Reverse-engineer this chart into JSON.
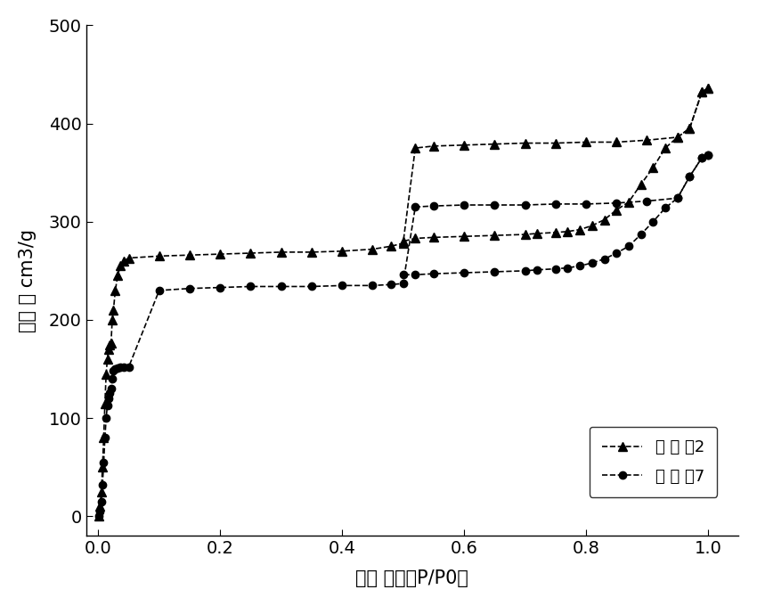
{
  "title": "",
  "xlabel": "相对 压力（P/P0）",
  "ylabel": "吸附 量 cm3/g",
  "xlim": [
    -0.02,
    1.05
  ],
  "ylim": [
    -20,
    500
  ],
  "yticks": [
    0,
    100,
    200,
    300,
    400,
    500
  ],
  "xticks": [
    0.0,
    0.2,
    0.4,
    0.6,
    0.8,
    1.0
  ],
  "legend_labels": [
    "实 施 例2",
    "实 施 例7"
  ],
  "series2_adsorption_x": [
    0.001,
    0.003,
    0.005,
    0.007,
    0.009,
    0.011,
    0.013,
    0.015,
    0.017,
    0.019,
    0.021,
    0.023,
    0.025,
    0.028,
    0.032,
    0.036,
    0.042,
    0.05,
    0.1,
    0.15,
    0.2,
    0.25,
    0.3,
    0.35,
    0.4,
    0.45,
    0.48,
    0.5,
    0.52,
    0.55,
    0.6,
    0.65,
    0.7,
    0.75,
    0.8,
    0.85,
    0.9,
    0.95,
    0.97,
    0.99,
    1.0
  ],
  "series2_adsorption_y": [
    0,
    10,
    25,
    50,
    80,
    115,
    145,
    160,
    170,
    175,
    176,
    200,
    210,
    230,
    245,
    255,
    260,
    263,
    265,
    266,
    267,
    268,
    269,
    269,
    270,
    272,
    275,
    278,
    375,
    377,
    378,
    379,
    380,
    380,
    381,
    381,
    383,
    386,
    395,
    432,
    436
  ],
  "series2_desorption_x": [
    1.0,
    0.99,
    0.97,
    0.95,
    0.93,
    0.91,
    0.89,
    0.87,
    0.85,
    0.83,
    0.81,
    0.79,
    0.77,
    0.75,
    0.72,
    0.7,
    0.65,
    0.6,
    0.55,
    0.52,
    0.5
  ],
  "series2_desorption_y": [
    436,
    432,
    395,
    386,
    375,
    355,
    338,
    320,
    312,
    302,
    296,
    292,
    290,
    289,
    288,
    287,
    286,
    285,
    284,
    283,
    280
  ],
  "series7_adsorption_x": [
    0.001,
    0.003,
    0.005,
    0.007,
    0.009,
    0.011,
    0.013,
    0.015,
    0.017,
    0.019,
    0.021,
    0.023,
    0.025,
    0.028,
    0.032,
    0.036,
    0.042,
    0.05,
    0.1,
    0.15,
    0.2,
    0.25,
    0.3,
    0.35,
    0.4,
    0.45,
    0.48,
    0.5,
    0.52,
    0.55,
    0.6,
    0.65,
    0.7,
    0.75,
    0.8,
    0.85,
    0.9,
    0.95,
    0.97,
    0.99,
    1.0
  ],
  "series7_adsorption_y": [
    0,
    5,
    15,
    32,
    55,
    80,
    100,
    113,
    120,
    126,
    130,
    140,
    148,
    150,
    151,
    152,
    152,
    152,
    230,
    232,
    233,
    234,
    234,
    234,
    235,
    235,
    236,
    237,
    315,
    316,
    317,
    317,
    317,
    318,
    318,
    319,
    321,
    324,
    346,
    365,
    368
  ],
  "series7_desorption_x": [
    1.0,
    0.99,
    0.97,
    0.95,
    0.93,
    0.91,
    0.89,
    0.87,
    0.85,
    0.83,
    0.81,
    0.79,
    0.77,
    0.75,
    0.72,
    0.7,
    0.65,
    0.6,
    0.55,
    0.52,
    0.5
  ],
  "series7_desorption_y": [
    368,
    365,
    346,
    324,
    314,
    300,
    287,
    275,
    268,
    262,
    258,
    255,
    253,
    252,
    251,
    250,
    249,
    248,
    247,
    246,
    246
  ],
  "line_color": "#000000",
  "marker_triangle": "^",
  "marker_circle": "o",
  "markersize_tri": 7,
  "markersize_circle": 6,
  "linewidth": 1.2,
  "background_color": "#ffffff",
  "xlabel_fontsize": 15,
  "ylabel_fontsize": 15,
  "tick_fontsize": 14,
  "legend_fontsize": 13
}
